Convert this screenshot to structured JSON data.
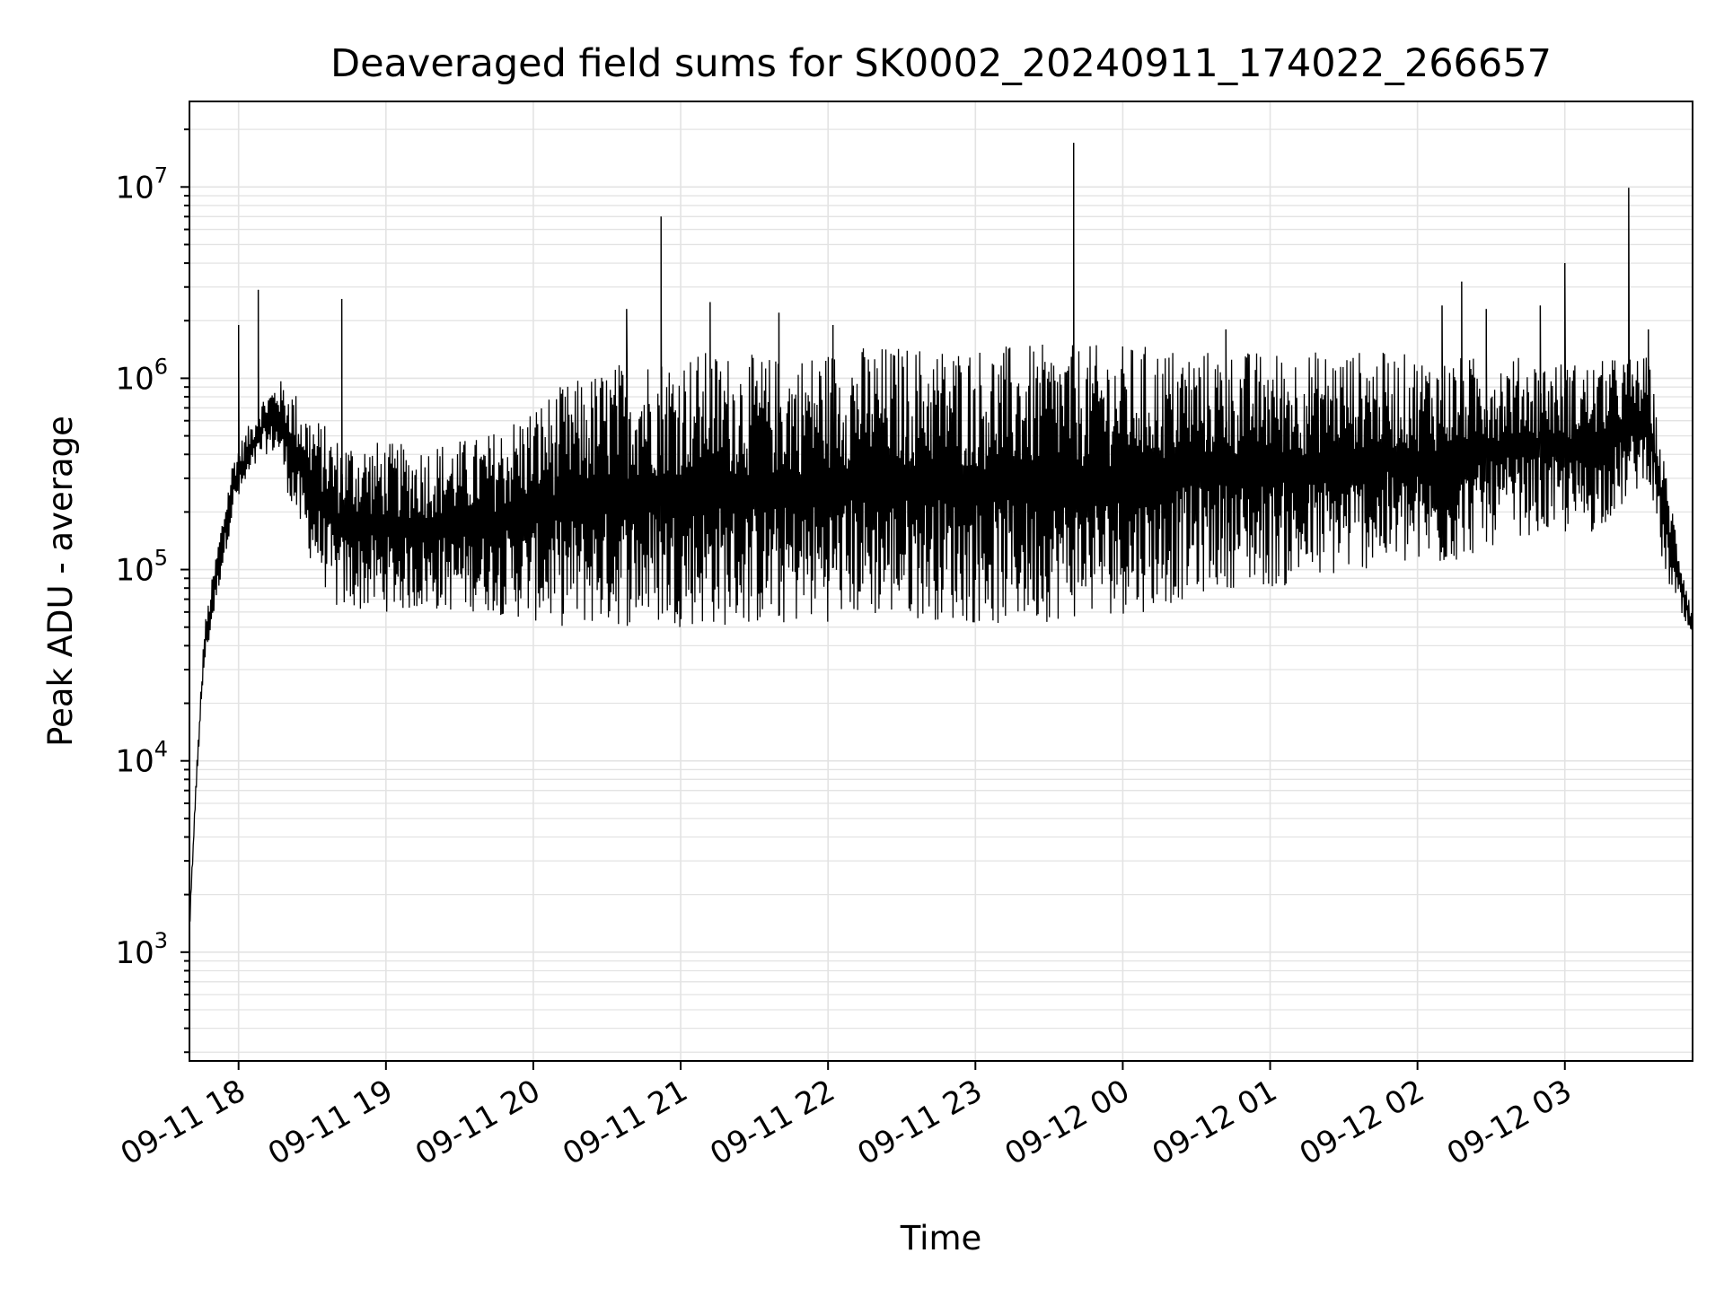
{
  "chart_data": {
    "type": "line",
    "title": "Deaveraged field sums for SK0002_20240911_174022_266657",
    "xlabel": "Time",
    "ylabel": "Peak ADU - average",
    "yscale": "log",
    "grid": true,
    "line_color": "#000000",
    "grid_color": "#e3e3e3",
    "xlim": [
      "2024-09-11 17:40",
      "2024-09-12 03:52"
    ],
    "ylim": [
      270,
      28000000
    ],
    "x_ticks": [
      "09-11 18",
      "09-11 19",
      "09-11 20",
      "09-11 21",
      "09-11 22",
      "09-11 23",
      "09-12 00",
      "09-12 01",
      "09-12 02",
      "09-12 03"
    ],
    "y_ticks": [
      {
        "base": "10",
        "exp": "3"
      },
      {
        "base": "10",
        "exp": "4"
      },
      {
        "base": "10",
        "exp": "5"
      },
      {
        "base": "10",
        "exp": "6"
      },
      {
        "base": "10",
        "exp": "7"
      }
    ],
    "series": [
      {
        "envelope": {
          "note_times": "hours after 2024-09-11 17:40",
          "t": [
            0.0,
            0.05,
            0.1,
            0.2,
            0.3,
            0.5,
            0.6,
            0.7,
            0.8,
            1.0,
            1.5,
            2.0,
            2.5,
            3.0,
            3.5,
            4.0,
            4.5,
            5.0,
            5.5,
            6.0,
            6.5,
            7.0,
            7.5,
            8.0,
            8.5,
            9.0,
            9.5,
            9.7,
            9.9,
            10.0,
            10.1,
            10.2
          ],
          "low": [
            1200,
            8000,
            30000,
            80000,
            200000,
            400000,
            400000,
            200000,
            120000,
            60000,
            60000,
            60000,
            50000,
            50000,
            50000,
            50000,
            55000,
            55000,
            50000,
            55000,
            60000,
            80000,
            80000,
            100000,
            100000,
            150000,
            150000,
            200000,
            300000,
            100000,
            60000,
            40000
          ],
          "high": [
            1500,
            10000,
            50000,
            150000,
            400000,
            800000,
            1000000,
            900000,
            700000,
            500000,
            450000,
            500000,
            900000,
            1300000,
            1400000,
            1300000,
            1500000,
            1500000,
            1500000,
            1500000,
            1500000,
            1400000,
            1400000,
            1400000,
            1300000,
            1300000,
            1200000,
            1300000,
            1300000,
            400000,
            150000,
            60000
          ]
        },
        "spikes": [
          {
            "time": "2024-09-11 18:00",
            "value": 1900000
          },
          {
            "time": "2024-09-11 18:08",
            "value": 2900000
          },
          {
            "time": "2024-09-11 18:42",
            "value": 2600000
          },
          {
            "time": "2024-09-11 20:38",
            "value": 2300000
          },
          {
            "time": "2024-09-11 20:52",
            "value": 7000000
          },
          {
            "time": "2024-09-11 21:12",
            "value": 2500000
          },
          {
            "time": "2024-09-11 21:40",
            "value": 2200000
          },
          {
            "time": "2024-09-11 22:02",
            "value": 1900000
          },
          {
            "time": "2024-09-11 23:40",
            "value": 17000000
          },
          {
            "time": "2024-09-12 00:42",
            "value": 1800000
          },
          {
            "time": "2024-09-12 02:10",
            "value": 2400000
          },
          {
            "time": "2024-09-12 02:18",
            "value": 3200000
          },
          {
            "time": "2024-09-12 02:28",
            "value": 2300000
          },
          {
            "time": "2024-09-12 02:50",
            "value": 2400000
          },
          {
            "time": "2024-09-12 03:00",
            "value": 4000000
          },
          {
            "time": "2024-09-12 03:26",
            "value": 9900000
          },
          {
            "time": "2024-09-12 03:34",
            "value": 1800000
          }
        ]
      }
    ]
  }
}
